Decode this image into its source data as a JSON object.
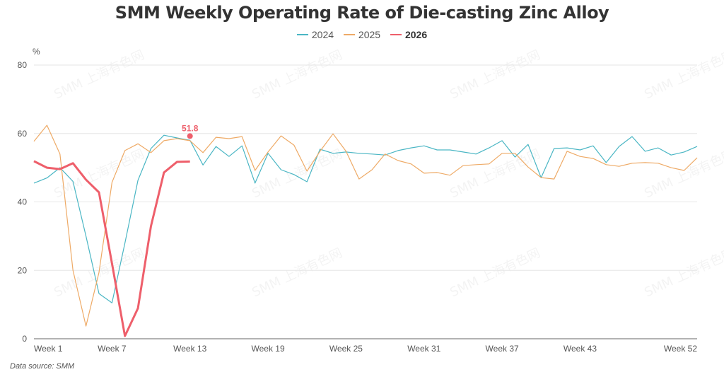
{
  "chart_data": {
    "type": "line",
    "title": "SMM Weekly Operating Rate of Die-casting Zinc Alloy",
    "ylabel": "%",
    "xlabel": "",
    "ylim": [
      0,
      80
    ],
    "yticks": [
      0,
      20,
      40,
      60,
      80
    ],
    "xtick_labels": [
      "Week 1",
      "Week 7",
      "Week 13",
      "Week 19",
      "Week 25",
      "Week 31",
      "Week 37",
      "Week 43",
      "Week 52"
    ],
    "xtick_weeks": [
      1,
      7,
      13,
      19,
      25,
      31,
      37,
      43,
      52
    ],
    "x_count": 52,
    "grid": true,
    "legend_position": "top-center",
    "series": [
      {
        "name": "2024",
        "color": "#4ab6c4",
        "values": [
          45.5,
          47,
          50,
          46,
          30,
          13.2,
          10.5,
          28,
          46.3,
          55.6,
          59.5,
          58.7,
          58,
          50.8,
          56.2,
          53.3,
          56.4,
          45.5,
          54.2,
          49.4,
          48,
          45.9,
          55.4,
          54.2,
          54.6,
          54.2,
          54,
          53.7,
          55,
          55.8,
          56.4,
          55.2,
          55.2,
          54.6,
          54,
          55.8,
          57.9,
          53.1,
          56.8,
          47.1,
          55.6,
          55.8,
          55.2,
          56.4,
          51.5,
          56.2,
          59.1,
          54.8,
          55.8,
          53.7,
          54.6,
          56.2
        ]
      },
      {
        "name": "2025",
        "color": "#eeaa66",
        "values": [
          57.7,
          62.4,
          54,
          20,
          3.7,
          19.4,
          45.7,
          55,
          57,
          54.4,
          57.9,
          58.5,
          57.9,
          54.4,
          58.9,
          58.5,
          59.1,
          49.2,
          54.6,
          59.3,
          56.6,
          49,
          54.8,
          59.9,
          54.8,
          46.7,
          49.4,
          54,
          52.1,
          51.1,
          48.4,
          48.6,
          47.8,
          50.6,
          50.9,
          51.1,
          54.2,
          54.2,
          50.2,
          47.1,
          46.7,
          54.8,
          53.3,
          52.7,
          50.9,
          50.4,
          51.3,
          51.5,
          51.3,
          50,
          49.2,
          52.9
        ]
      },
      {
        "name": "2026",
        "color": "#ee5f6b",
        "bold": true,
        "values": [
          51.9,
          50,
          49.6,
          51.3,
          46.5,
          42.8,
          22,
          0.8,
          8.9,
          32.9,
          48.6,
          51.7,
          51.8
        ]
      }
    ],
    "annotations": [
      {
        "series": "2026",
        "week": 13,
        "label": "51.8"
      }
    ]
  },
  "watermark": "SMM 上海有色网",
  "footer": {
    "source": "Data source:  SMM"
  }
}
